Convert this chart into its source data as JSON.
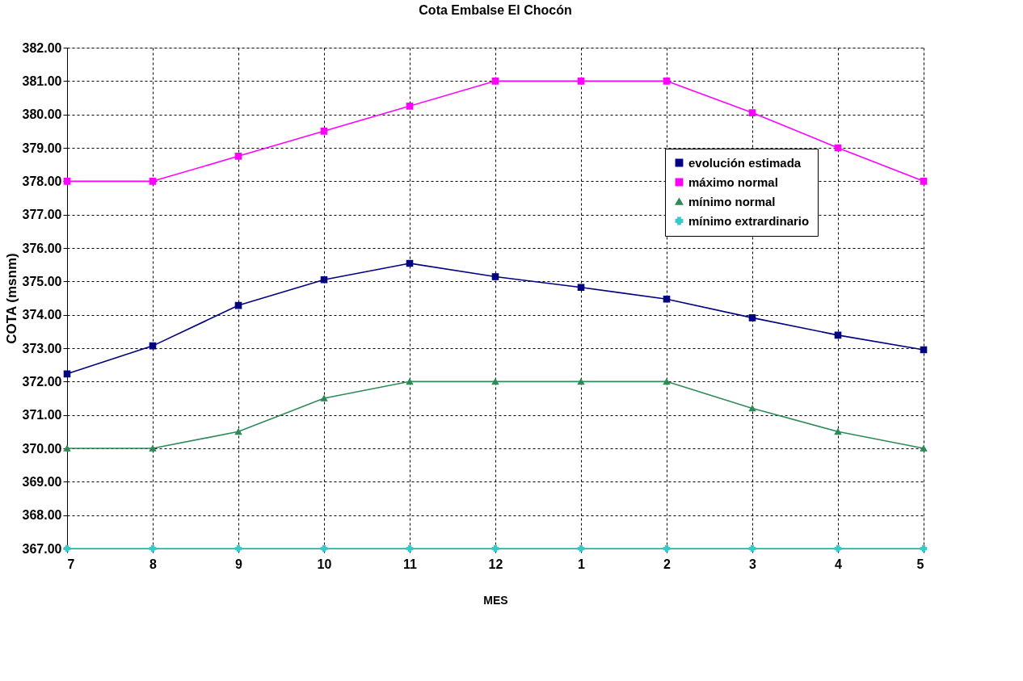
{
  "chart_data": {
    "type": "line",
    "title": "Cota Embalse El Chocón",
    "xlabel": "MES",
    "ylabel": "COTA (msnm)",
    "categories": [
      "7",
      "8",
      "9",
      "10",
      "11",
      "12",
      "1",
      "2",
      "3",
      "4",
      "5"
    ],
    "series": [
      {
        "name": "evolución estimada",
        "color": "#000080",
        "marker": "square",
        "values": [
          372.23,
          373.07,
          374.28,
          375.05,
          375.54,
          375.14,
          374.82,
          374.47,
          373.91,
          373.39,
          372.95
        ]
      },
      {
        "name": "máximo normal",
        "color": "#ff00ff",
        "marker": "square",
        "values": [
          378,
          378,
          378.75,
          379.5,
          380.25,
          381,
          381,
          381,
          380.05,
          379,
          378
        ]
      },
      {
        "name": "mínimo normal",
        "color": "#2e8b57",
        "marker": "triangle",
        "values": [
          370,
          370,
          370.5,
          371.5,
          372,
          372,
          372,
          372,
          371.2,
          370.5,
          370
        ]
      },
      {
        "name": "mínimo extrardinario",
        "color": "#33cccc",
        "marker": "cross",
        "values": [
          367,
          367,
          367,
          367,
          367,
          367,
          367,
          367,
          367,
          367,
          367
        ]
      }
    ],
    "ylim": [
      367,
      382
    ],
    "yticks": [
      {
        "value": 367,
        "label": "367.00"
      },
      {
        "value": 368,
        "label": "368.00"
      },
      {
        "value": 369,
        "label": "369.00"
      },
      {
        "value": 370,
        "label": "370.00"
      },
      {
        "value": 371,
        "label": "371.00"
      },
      {
        "value": 372,
        "label": "372.00"
      },
      {
        "value": 373,
        "label": "373.00"
      },
      {
        "value": 374,
        "label": "374.00"
      },
      {
        "value": 375,
        "label": "375.00"
      },
      {
        "value": 376,
        "label": "376.00"
      },
      {
        "value": 377,
        "label": "377.00"
      },
      {
        "value": 378,
        "label": "378.00"
      },
      {
        "value": 379,
        "label": "379.00"
      },
      {
        "value": 380,
        "label": "380.00"
      },
      {
        "value": 381,
        "label": "381.00"
      },
      {
        "value": 382,
        "label": "382.00"
      }
    ],
    "grid": true,
    "legend": "top right",
    "line_style": "solid"
  }
}
